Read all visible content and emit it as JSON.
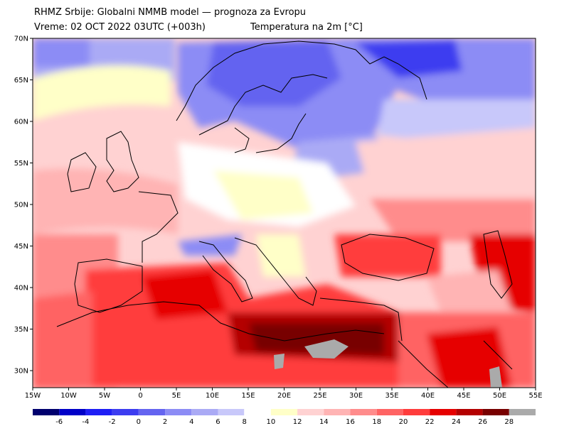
{
  "header": {
    "title": "RHMZ Srbije: Globalni NMMB model — prognoza za Evropu",
    "valid_time": "Vreme: 02 OCT 2022 03UTC (+003h)",
    "parameter": "Temperatura na 2m [°C]"
  },
  "axes": {
    "lat_labels": [
      "70N",
      "65N",
      "60N",
      "55N",
      "50N",
      "45N",
      "40N",
      "35N",
      "30N"
    ],
    "lon_labels": [
      "15W",
      "10W",
      "5W",
      "0",
      "5E",
      "10E",
      "15E",
      "20E",
      "25E",
      "30E",
      "35E",
      "40E",
      "45E",
      "50E",
      "55E"
    ]
  },
  "legend": {
    "labels": [
      "-6",
      "-4",
      "-2",
      "0",
      "2",
      "4",
      "6",
      "8",
      "10",
      "12",
      "14",
      "16",
      "18",
      "20",
      "22",
      "24",
      "26",
      "28"
    ],
    "colors": [
      "#00006e",
      "#0000c8",
      "#1e1ef5",
      "#3c3cf0",
      "#6464f0",
      "#8c8cf5",
      "#aaaaf5",
      "#c8c8fa",
      "#ffffff",
      "#ffffc8",
      "#ffd2d2",
      "#ffb4b4",
      "#ff8c8c",
      "#ff6464",
      "#ff3c3c",
      "#e60000",
      "#b40000",
      "#780000",
      "#aaaaaa"
    ]
  },
  "colors": {
    "land_outline": "#000000",
    "water_grey": "#aaaaaa"
  }
}
